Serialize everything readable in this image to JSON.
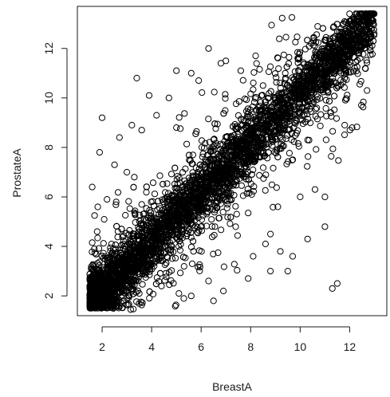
{
  "chart_data": {
    "type": "scatter",
    "xlabel": "BreastA",
    "ylabel": "ProstateA",
    "xlim": [
      1.0,
      13.5
    ],
    "ylim": [
      1.2,
      13.7
    ],
    "xticks": [
      2,
      4,
      6,
      8,
      10,
      12
    ],
    "yticks": [
      2,
      4,
      6,
      8,
      10,
      12
    ],
    "grid": false,
    "marker": "open-circle",
    "marker_color": "#000000",
    "points": [
      [
        2.0,
        9.2
      ],
      [
        2.7,
        8.4
      ],
      [
        3.2,
        8.9
      ],
      [
        3.4,
        10.8
      ],
      [
        3.6,
        8.7
      ],
      [
        3.9,
        10.1
      ],
      [
        4.7,
        10.0
      ],
      [
        5.0,
        11.1
      ],
      [
        5.6,
        11.0
      ],
      [
        5.9,
        10.7
      ],
      [
        6.8,
        11.4
      ],
      [
        6.3,
        12.0
      ],
      [
        7.0,
        11.5
      ],
      [
        7.6,
        11.1
      ],
      [
        8.2,
        11.7
      ],
      [
        8.5,
        10.5
      ],
      [
        8.7,
        10.0
      ],
      [
        9.4,
        11.0
      ],
      [
        9.9,
        11.6
      ],
      [
        11.2,
        12.3
      ],
      [
        11.8,
        12.7
      ],
      [
        12.4,
        13.1
      ],
      [
        12.7,
        10.3
      ],
      [
        11.8,
        8.9
      ],
      [
        12.1,
        8.8
      ],
      [
        10.3,
        8.3
      ],
      [
        9.7,
        7.5
      ],
      [
        10.6,
        6.3
      ],
      [
        11.0,
        6.0
      ],
      [
        10.0,
        6.0
      ],
      [
        9.1,
        5.6
      ],
      [
        11.0,
        4.8
      ],
      [
        10.3,
        4.3
      ],
      [
        8.8,
        4.5
      ],
      [
        8.6,
        4.1
      ],
      [
        8.1,
        3.6
      ],
      [
        8.8,
        3.0
      ],
      [
        7.9,
        2.7
      ],
      [
        6.9,
        2.2
      ],
      [
        6.5,
        1.8
      ],
      [
        6.3,
        2.6
      ],
      [
        5.6,
        2.0
      ],
      [
        5.1,
        2.1
      ],
      [
        11.3,
        2.3
      ],
      [
        11.5,
        2.5
      ],
      [
        9.5,
        3.0
      ],
      [
        9.2,
        3.8
      ],
      [
        9.7,
        3.6
      ],
      [
        1.6,
        3.1
      ],
      [
        1.5,
        2.4
      ],
      [
        1.6,
        6.4
      ],
      [
        2.2,
        5.9
      ],
      [
        1.8,
        4.6
      ],
      [
        1.9,
        7.8
      ],
      [
        2.5,
        7.3
      ],
      [
        3.0,
        7.0
      ],
      [
        4.2,
        9.3
      ],
      [
        3.3,
        6.8
      ],
      [
        5.0,
        8.8
      ],
      [
        2.3,
        2.8
      ],
      [
        2.8,
        2.3
      ],
      [
        3.5,
        2.1
      ],
      [
        4.4,
        2.4
      ],
      [
        3.0,
        1.9
      ]
    ]
  }
}
